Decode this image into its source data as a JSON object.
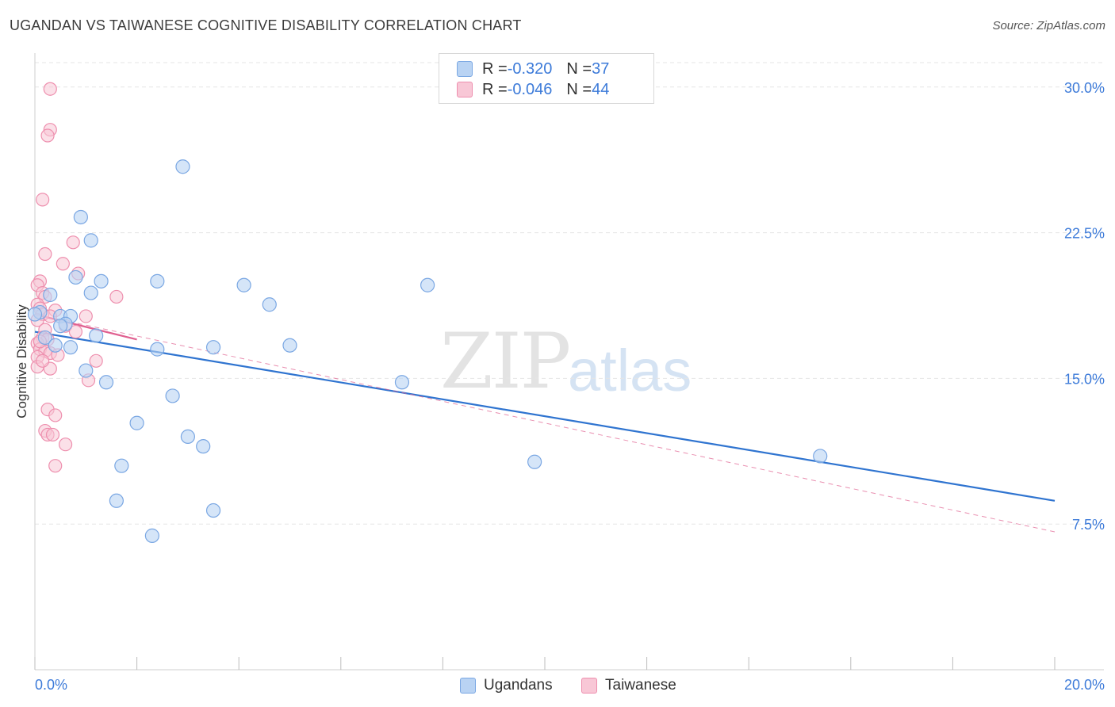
{
  "header": {
    "title": "UGANDAN VS TAIWANESE COGNITIVE DISABILITY CORRELATION CHART",
    "source": "Source: ZipAtlas.com"
  },
  "watermark": {
    "zip": "ZIP",
    "atlas": "atlas"
  },
  "legend": {
    "rows": [
      {
        "r_label": "R = ",
        "r_value": "-0.320",
        "n_label": "N = ",
        "n_value": "37"
      },
      {
        "r_label": "R = ",
        "r_value": "-0.046",
        "n_label": "N = ",
        "n_value": "44"
      }
    ]
  },
  "colors": {
    "blue_fill": "#b9d3f3",
    "blue_stroke": "#7aa7e3",
    "blue_line": "#2f74d0",
    "pink_fill": "#f8c7d6",
    "pink_stroke": "#ee8fae",
    "pink_line": "#e06090",
    "axis_label": "#3d7bd9",
    "grid": "#e5e5e5"
  },
  "chart_data": {
    "type": "scatter",
    "title": "UGANDAN VS TAIWANESE COGNITIVE DISABILITY CORRELATION CHART",
    "xlabel": "",
    "ylabel": "Cognitive Disability",
    "xlim": [
      0,
      20
    ],
    "ylim": [
      0,
      31.5
    ],
    "y_ticks": [
      7.5,
      15.0,
      22.5,
      30.0
    ],
    "y_tick_labels": [
      "7.5%",
      "15.0%",
      "22.5%",
      "30.0%"
    ],
    "x_tick_labels": [
      "0.0%",
      "20.0%"
    ],
    "series": [
      {
        "name": "Ugandans",
        "color": "blue",
        "r": -0.32,
        "n": 37,
        "trend": {
          "x": [
            0,
            20
          ],
          "y": [
            17.4,
            8.7
          ],
          "style": "solid"
        },
        "points": [
          [
            2.9,
            25.9
          ],
          [
            0.9,
            23.3
          ],
          [
            1.1,
            22.1
          ],
          [
            0.8,
            20.2
          ],
          [
            1.3,
            20.0
          ],
          [
            2.4,
            20.0
          ],
          [
            4.1,
            19.8
          ],
          [
            7.7,
            19.8
          ],
          [
            1.1,
            19.4
          ],
          [
            0.3,
            19.3
          ],
          [
            4.6,
            18.8
          ],
          [
            0.5,
            18.2
          ],
          [
            0.7,
            18.2
          ],
          [
            0.1,
            18.4
          ],
          [
            0.6,
            17.8
          ],
          [
            0.5,
            17.7
          ],
          [
            1.2,
            17.2
          ],
          [
            0.2,
            17.1
          ],
          [
            0.4,
            16.7
          ],
          [
            0.7,
            16.6
          ],
          [
            2.4,
            16.5
          ],
          [
            3.5,
            16.6
          ],
          [
            5.0,
            16.7
          ],
          [
            1.0,
            15.4
          ],
          [
            1.4,
            14.8
          ],
          [
            7.2,
            14.8
          ],
          [
            2.7,
            14.1
          ],
          [
            2.0,
            12.7
          ],
          [
            3.0,
            12.0
          ],
          [
            3.3,
            11.5
          ],
          [
            1.7,
            10.5
          ],
          [
            9.8,
            10.7
          ],
          [
            15.4,
            11.0
          ],
          [
            1.6,
            8.7
          ],
          [
            3.5,
            8.2
          ],
          [
            2.3,
            6.9
          ],
          [
            0.0,
            18.3
          ]
        ]
      },
      {
        "name": "Taiwanese",
        "color": "pink",
        "r": -0.046,
        "n": 44,
        "trend": {
          "x": [
            0,
            2.0
          ],
          "y": [
            18.3,
            17.0
          ],
          "style": "solid",
          "extended": {
            "x": [
              0,
              20
            ],
            "y": [
              18.3,
              7.1
            ],
            "style": "dashed"
          }
        },
        "points": [
          [
            0.3,
            29.9
          ],
          [
            0.3,
            27.8
          ],
          [
            0.25,
            27.5
          ],
          [
            0.15,
            24.2
          ],
          [
            0.2,
            21.4
          ],
          [
            0.75,
            22.0
          ],
          [
            0.55,
            20.9
          ],
          [
            0.85,
            20.4
          ],
          [
            0.1,
            20.0
          ],
          [
            0.05,
            19.8
          ],
          [
            0.15,
            19.4
          ],
          [
            0.2,
            19.2
          ],
          [
            1.6,
            19.2
          ],
          [
            0.05,
            18.8
          ],
          [
            0.1,
            18.6
          ],
          [
            0.4,
            18.5
          ],
          [
            0.15,
            18.3
          ],
          [
            0.3,
            18.2
          ],
          [
            1.0,
            18.2
          ],
          [
            0.05,
            18.0
          ],
          [
            0.6,
            17.7
          ],
          [
            0.2,
            17.5
          ],
          [
            0.8,
            17.4
          ],
          [
            0.15,
            17.1
          ],
          [
            0.25,
            17.0
          ],
          [
            0.05,
            16.8
          ],
          [
            0.1,
            16.5
          ],
          [
            0.2,
            16.4
          ],
          [
            0.3,
            16.3
          ],
          [
            0.45,
            16.2
          ],
          [
            0.05,
            16.1
          ],
          [
            1.2,
            15.9
          ],
          [
            0.05,
            15.6
          ],
          [
            0.3,
            15.5
          ],
          [
            1.05,
            14.9
          ],
          [
            0.25,
            13.4
          ],
          [
            0.4,
            13.1
          ],
          [
            0.2,
            12.3
          ],
          [
            0.25,
            12.1
          ],
          [
            0.35,
            12.1
          ],
          [
            0.6,
            11.6
          ],
          [
            0.4,
            10.5
          ],
          [
            0.1,
            16.9
          ],
          [
            0.15,
            15.9
          ]
        ]
      }
    ]
  }
}
